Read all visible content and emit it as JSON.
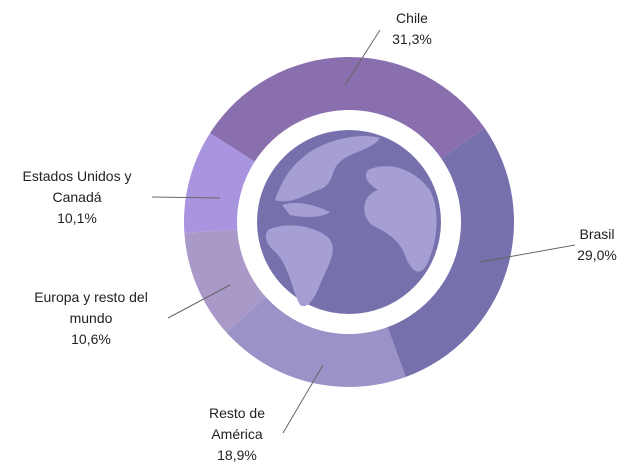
{
  "chart_data": {
    "type": "donut",
    "categories": [
      "Chile",
      "Brasil",
      "Resto de América",
      "Europa y resto del mundo",
      "Estados Unidos y Canadá"
    ],
    "values": [
      31.3,
      29.0,
      18.9,
      10.6,
      10.1
    ],
    "value_labels": [
      "31,3%",
      "29,0%",
      "18,9%",
      "10,6%",
      "10,1%"
    ],
    "colors": [
      "#8a6fae",
      "#7670ad",
      "#9b93c8",
      "#a899c8",
      "#a994e0"
    ]
  }
}
